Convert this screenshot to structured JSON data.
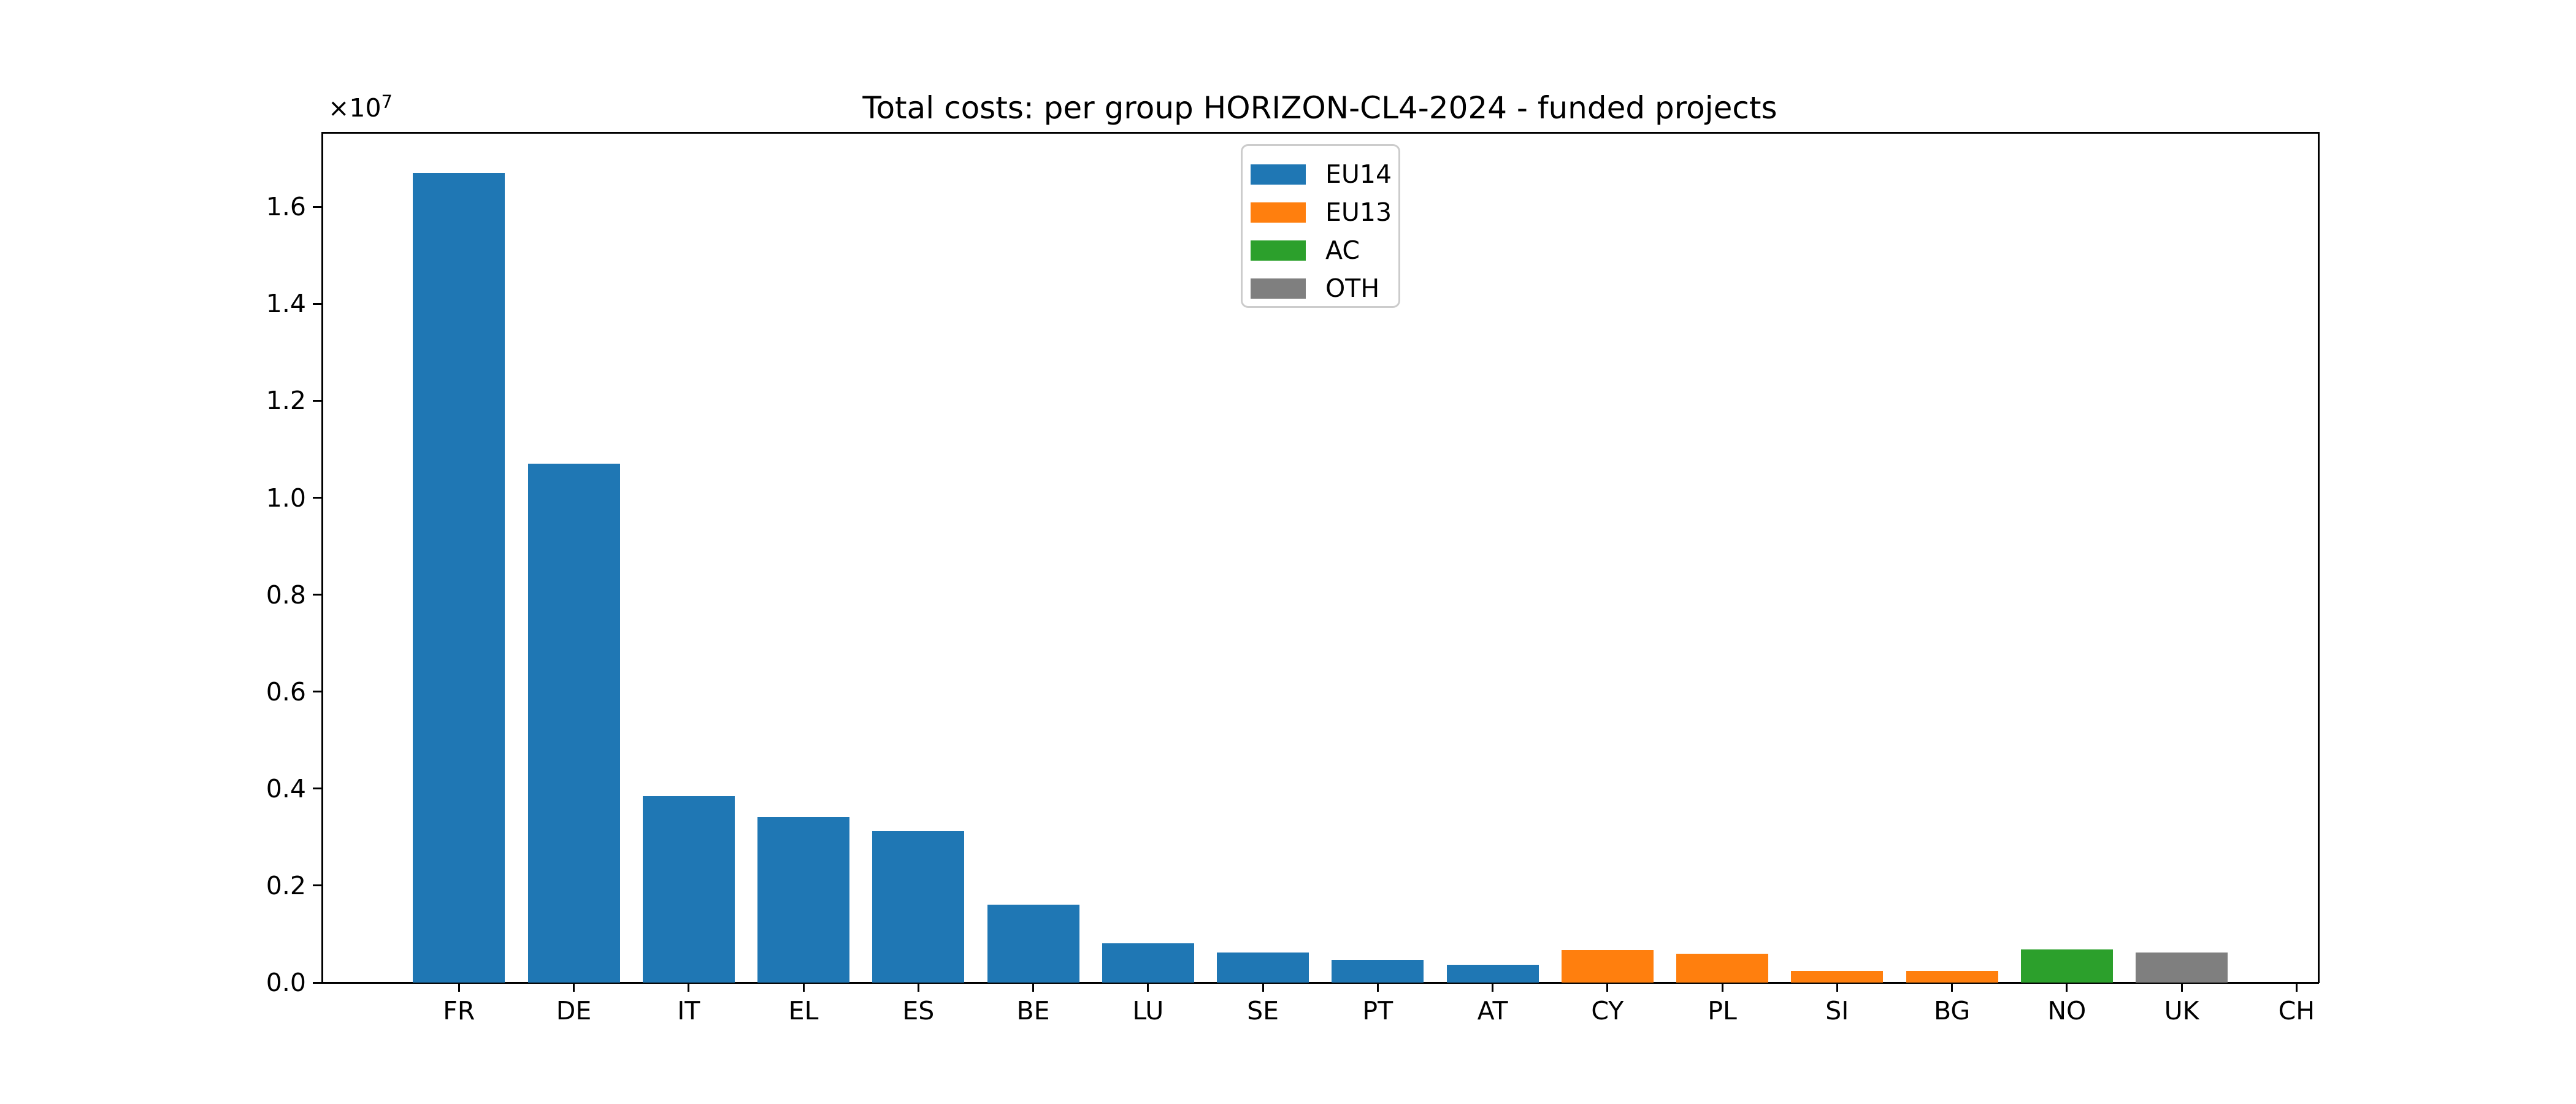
{
  "figure": {
    "background": "#ffffff",
    "axis_color": "#000000",
    "text_color": "#000000"
  },
  "chart_data": {
    "type": "bar",
    "title": "Total costs: per group HORIZON-CL4-2024 - funded projects",
    "xlabel": "",
    "ylabel": "",
    "grid": false,
    "y_offset_label": {
      "base": "×10",
      "exponent": "7"
    },
    "categories": [
      "FR",
      "DE",
      "IT",
      "EL",
      "ES",
      "BE",
      "LU",
      "SE",
      "PT",
      "AT",
      "CY",
      "PL",
      "SI",
      "BG",
      "NO",
      "UK",
      "CH"
    ],
    "values": [
      16700000,
      10700000,
      3850000,
      3420000,
      3120000,
      1610000,
      810000,
      620000,
      470000,
      370000,
      670000,
      600000,
      245000,
      245000,
      680000,
      625000,
      0
    ],
    "bar_groups": [
      "EU14",
      "EU14",
      "EU14",
      "EU14",
      "EU14",
      "EU14",
      "EU14",
      "EU14",
      "EU14",
      "EU14",
      "EU13",
      "EU13",
      "EU13",
      "EU13",
      "AC",
      "OTH",
      "OTH"
    ],
    "group_colors": {
      "EU14": "#1f77b4",
      "EU13": "#ff7f0e",
      "AC": "#2ca02c",
      "OTH": "#7f7f7f"
    },
    "legend": {
      "position": "upper-center-inside",
      "entries": [
        {
          "label": "EU14",
          "color": "#1f77b4"
        },
        {
          "label": "EU13",
          "color": "#ff7f0e"
        },
        {
          "label": "AC",
          "color": "#2ca02c"
        },
        {
          "label": "OTH",
          "color": "#7f7f7f"
        }
      ]
    },
    "ylim": [
      0,
      17535000
    ],
    "yticks": {
      "values": [
        0,
        2000000,
        4000000,
        6000000,
        8000000,
        10000000,
        12000000,
        14000000,
        16000000
      ],
      "labels": [
        "0.0",
        "0.2",
        "0.4",
        "0.6",
        "0.8",
        "1.0",
        "1.2",
        "1.4",
        "1.6"
      ]
    }
  }
}
